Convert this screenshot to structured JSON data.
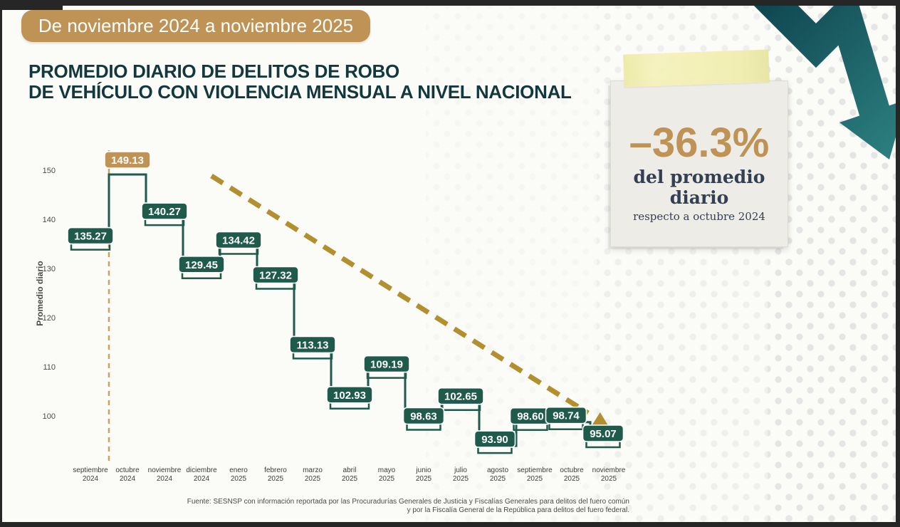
{
  "banner": {
    "label": "De noviembre 2024 a noviembre 2025",
    "bg_color": "#BE9355"
  },
  "title": {
    "line1": "PROMEDIO DIARIO DE DELITOS DE ROBO",
    "line2": "DE VEHÍCULO CON VIOLENCIA MENSUAL A NIVEL NACIONAL",
    "color": "#12383E"
  },
  "callout": {
    "percent": "–36.3%",
    "caption": "del promedio diario",
    "subcaption": "respecto a octubre 2024",
    "percent_color": "#BE9355",
    "text_color": "#333F52"
  },
  "decor": {
    "down_arrow_color_dark": "#0E434E",
    "down_arrow_color_light": "#2C8080",
    "tape_color": "#F1EEB0",
    "card_color": "#EDECE7"
  },
  "source": {
    "line1": "Fuente: SESNSP con información reportada por las Procuradurías Generales de Justicia y Fiscalías Generales para delitos del fuero común",
    "line2": "y por la Fiscalía General de la República para delitos del fuero federal."
  },
  "chart_data": {
    "type": "line",
    "variant": "step",
    "title": "Promedio diario de delitos de robo de vehículo con violencia mensual a nivel nacional",
    "xlabel": "",
    "ylabel": "Promedio diario",
    "ylim": [
      93,
      152
    ],
    "yticks": [
      150,
      140,
      130,
      120,
      110,
      100
    ],
    "grid": false,
    "legend": "none",
    "categories": [
      {
        "month": "septiembre",
        "year": "2024"
      },
      {
        "month": "octubre",
        "year": "2024"
      },
      {
        "month": "noviembre",
        "year": "2024"
      },
      {
        "month": "diciembre",
        "year": "2024"
      },
      {
        "month": "enero",
        "year": "2025"
      },
      {
        "month": "febrero",
        "year": "2025"
      },
      {
        "month": "marzo",
        "year": "2025"
      },
      {
        "month": "abril",
        "year": "2025"
      },
      {
        "month": "mayo",
        "year": "2025"
      },
      {
        "month": "junio",
        "year": "2025"
      },
      {
        "month": "julio",
        "year": "2025"
      },
      {
        "month": "agosto",
        "year": "2025"
      },
      {
        "month": "septiembre",
        "year": "2025"
      },
      {
        "month": "octubre",
        "year": "2025"
      },
      {
        "month": "noviembre",
        "year": "2025"
      }
    ],
    "values": [
      135.27,
      149.13,
      140.27,
      129.45,
      134.42,
      127.32,
      113.13,
      102.93,
      109.19,
      98.63,
      102.65,
      93.9,
      98.6,
      98.74,
      95.07
    ],
    "value_labels": [
      "135.27",
      "149.13",
      "140.27",
      "129.45",
      "134.42",
      "127.32",
      "113.13",
      "102.93",
      "109.19",
      "98.63",
      "102.65",
      "93.90",
      "98.60",
      "98.74",
      "95.07"
    ],
    "highlight": {
      "index": 1,
      "category": "octubre 2024",
      "value": 149.13
    },
    "reference_line": {
      "category": "octubre 2024",
      "style": "dashed-vertical"
    },
    "trend_arrow": {
      "from_value": 149.13,
      "to_value": 95.07,
      "style": "dashed"
    },
    "colors": {
      "line": "#1F5A4B",
      "label_bg": "#1F5A4B",
      "label_text": "#FFFFFF",
      "highlight_bg": "#BE9355",
      "trend": "#B2902F",
      "reference": "#C9A35F",
      "axis_text": "#4A4A4A"
    }
  }
}
